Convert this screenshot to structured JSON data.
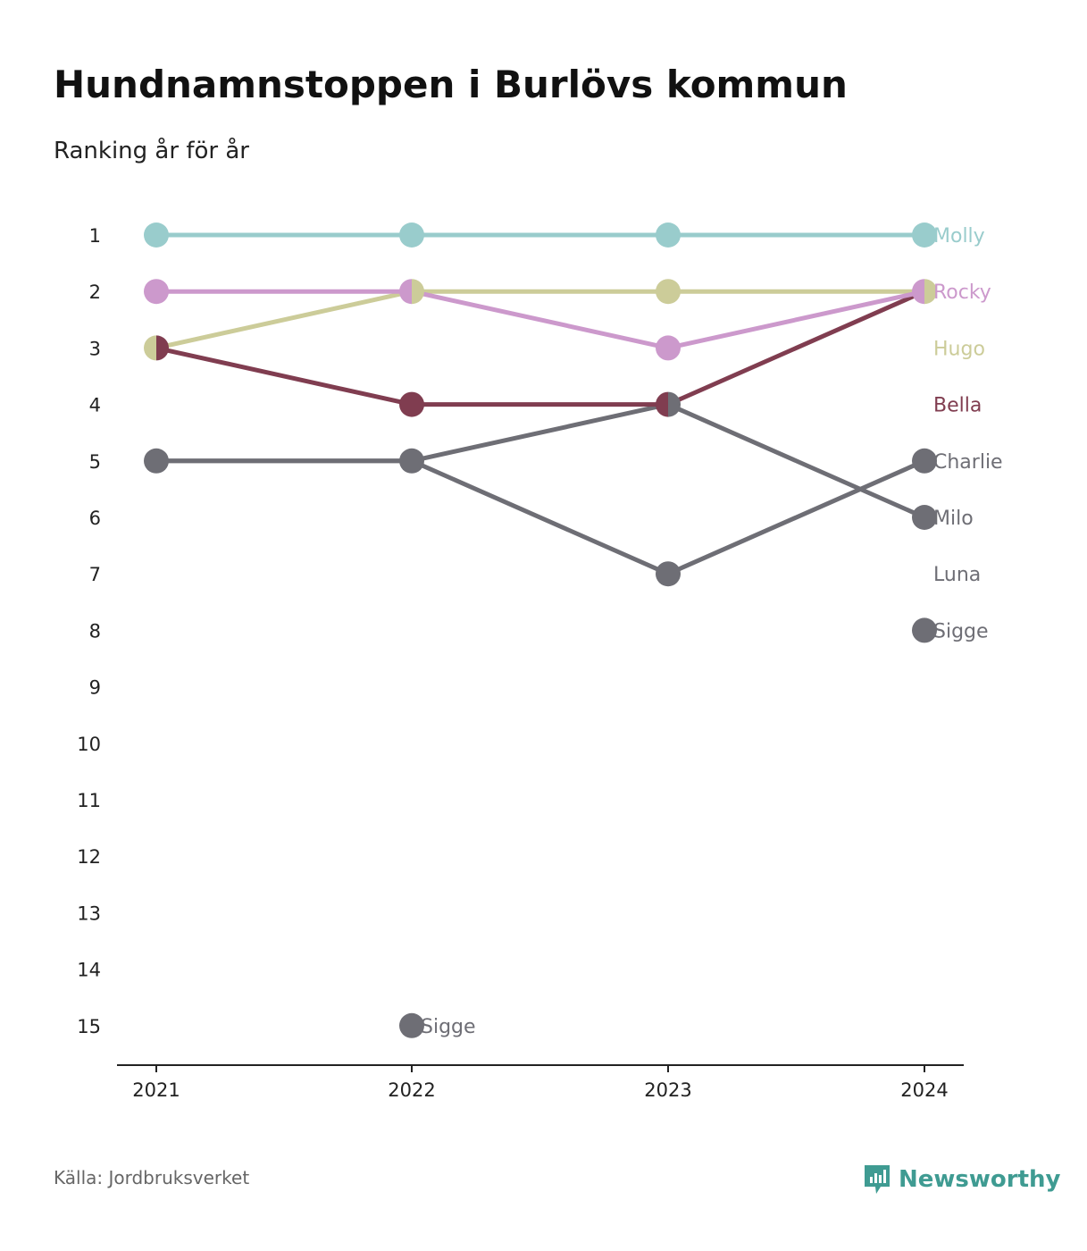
{
  "title": "Hundnamnstoppen i Burlövs kommun",
  "subtitle": "Ranking år för år",
  "source": "Källa: Jordbruksverket",
  "brand": {
    "name": "Newsworthy",
    "icon": "newsworthy-logo-icon",
    "color": "#3f9b92"
  },
  "chart_data": {
    "type": "line",
    "x": [
      "2021",
      "2022",
      "2023",
      "2024"
    ],
    "y_ticks": [
      1,
      2,
      3,
      4,
      5,
      6,
      7,
      8,
      9,
      10,
      11,
      12,
      13,
      14,
      15
    ],
    "ylim": [
      1,
      15
    ],
    "y_reversed": true,
    "grid": false,
    "series": [
      {
        "name": "Molly",
        "color": "#99cccc",
        "values": [
          1,
          1,
          1,
          1
        ],
        "end_label": "Molly"
      },
      {
        "name": "Rocky",
        "color": "#cc99cc",
        "values": [
          2,
          2,
          3,
          2
        ],
        "end_label": "Rocky"
      },
      {
        "name": "Hugo",
        "color": "#cccc99",
        "values": [
          3,
          2,
          2,
          2
        ],
        "end_label": "Hugo"
      },
      {
        "name": "Bella",
        "color": "#803d50",
        "values": [
          3,
          4,
          4,
          2
        ],
        "end_label": "Bella"
      },
      {
        "name": "Charlie",
        "color": "#6e6e75",
        "values": [
          5,
          5,
          7,
          5
        ],
        "end_label": "Charlie"
      },
      {
        "name": "Milo",
        "color": "#6e6e75",
        "values": [
          5,
          5,
          4,
          6
        ],
        "end_label": "Milo"
      },
      {
        "name": "Luna",
        "color": "#6e6e75",
        "values": [
          null,
          null,
          null,
          null
        ],
        "end_label": "Luna"
      },
      {
        "name": "Sigge",
        "color": "#6e6e75",
        "values": [
          null,
          15,
          null,
          8
        ],
        "end_label": "Sigge",
        "mid_label": "Sigge"
      }
    ],
    "label_order": [
      "Molly",
      "Rocky",
      "Hugo",
      "Bella",
      "Charlie",
      "Milo",
      "Luna",
      "Sigge"
    ]
  }
}
